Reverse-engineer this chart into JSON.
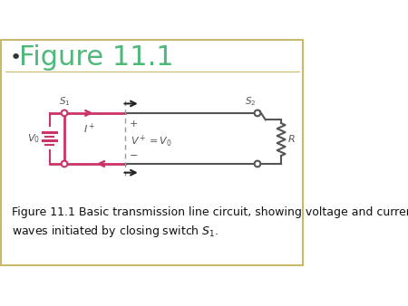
{
  "title": "Figure 11.1",
  "bullet": "•",
  "bg_color": "#ffffff",
  "border_color": "#c8b96e",
  "title_color": "#4db87a",
  "title_fontsize": 22,
  "circuit_color": "#555555",
  "pink_color": "#cc3366",
  "dashed_color": "#999999",
  "caption_fontsize": 9,
  "arrow_color": "#222222"
}
